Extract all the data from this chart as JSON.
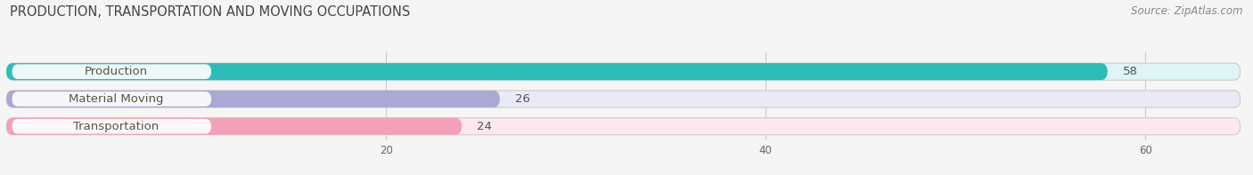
{
  "title": "PRODUCTION, TRANSPORTATION AND MOVING OCCUPATIONS",
  "source_text": "Source: ZipAtlas.com",
  "categories": [
    "Production",
    "Material Moving",
    "Transportation"
  ],
  "values": [
    58,
    26,
    24
  ],
  "bar_colors": [
    "#2bbcb8",
    "#a9a9d4",
    "#f4a0b8"
  ],
  "bar_bg_colors": [
    "#dff4f4",
    "#eaeaf6",
    "#fce8f0"
  ],
  "label_bg_color": "#ffffff",
  "xlim_data": [
    0,
    65
  ],
  "xticks": [
    20,
    40,
    60
  ],
  "label_fontsize": 9.5,
  "value_fontsize": 9.5,
  "title_fontsize": 10.5,
  "source_fontsize": 8.5,
  "bar_height": 0.62,
  "bar_gap": 0.18
}
